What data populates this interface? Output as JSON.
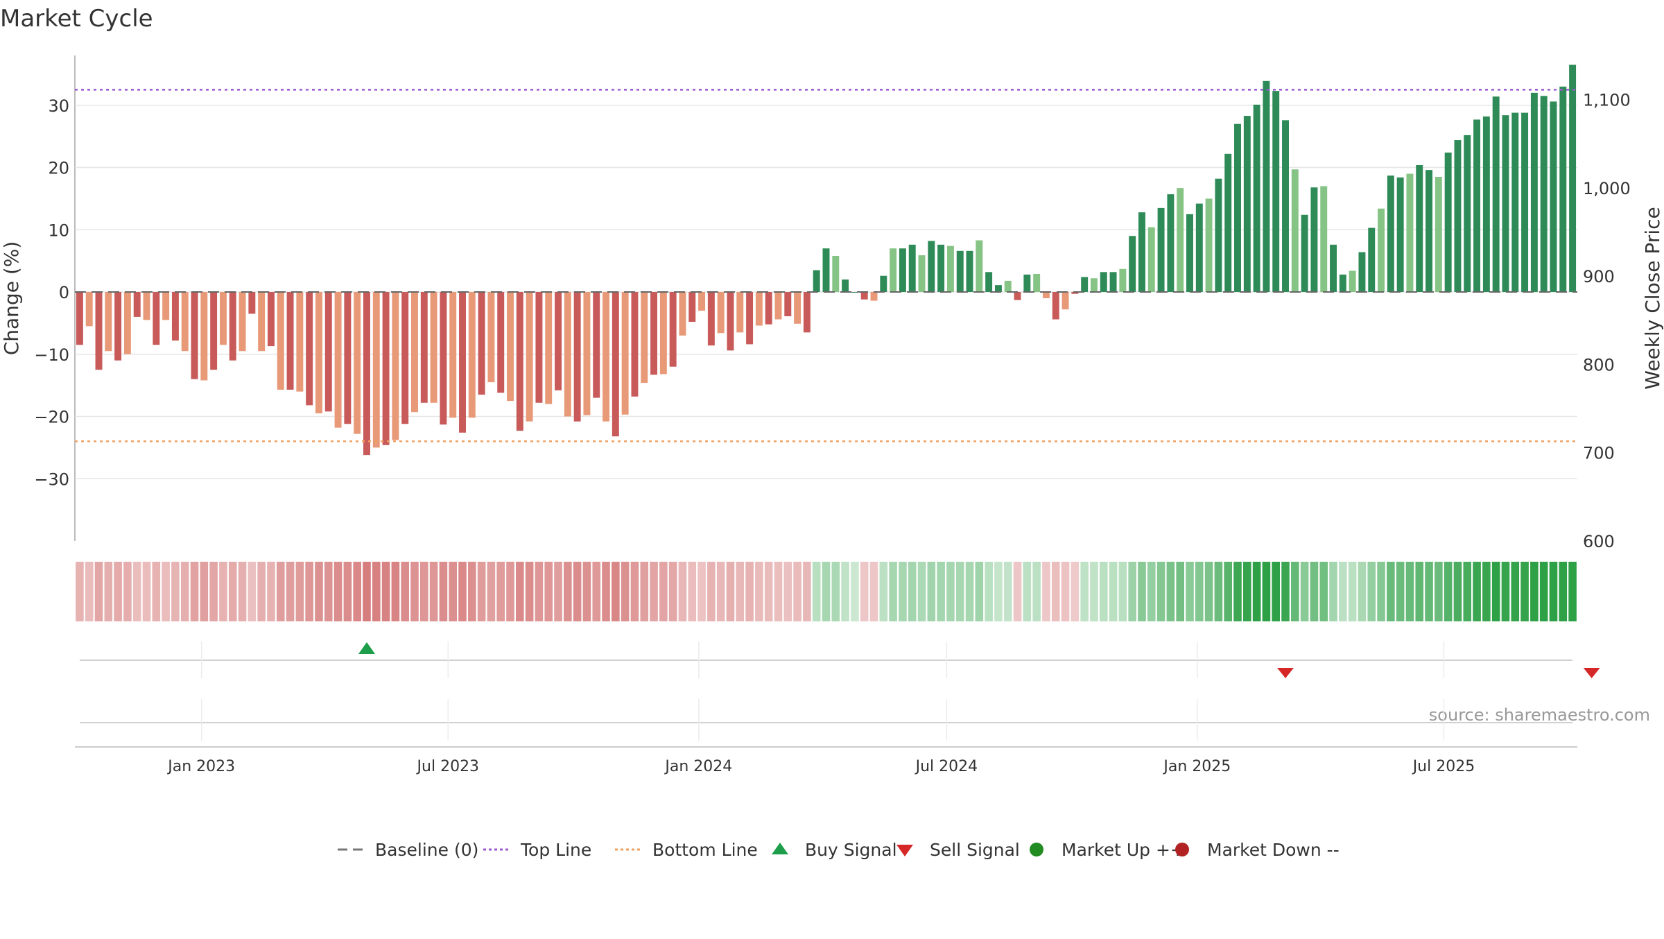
{
  "chart_data": {
    "type": "bar",
    "title": "Market Cycle",
    "ylabel_left": "Change (%)",
    "ylabel_right": "Weekly Close Price",
    "left_axis": {
      "ylim": [
        -40,
        38
      ],
      "ticks": [
        30,
        20,
        10,
        0,
        -10,
        -20,
        -30
      ],
      "tick_labels": [
        "30",
        "20",
        "10",
        "0",
        "−10",
        "−20",
        "−30"
      ]
    },
    "right_axis": {
      "ylim": [
        600,
        1150
      ],
      "ticks": [
        1100,
        1000,
        900,
        800,
        700,
        600
      ],
      "tick_labels": [
        "1,100",
        "1,000",
        "900",
        "800",
        "700",
        "600"
      ]
    },
    "x_axis": {
      "range": [
        "2022-09-30",
        "2025-10-07"
      ],
      "ticks": [
        "2023-01-01",
        "2023-07-01",
        "2024-01-01",
        "2024-07-01",
        "2025-01-01",
        "2025-07-01"
      ],
      "tick_labels": [
        "Jan 2023",
        "Jul 2023",
        "Jan 2024",
        "Jul 2024",
        "Jan 2025",
        "Jul 2025"
      ]
    },
    "grid": true,
    "legend_position": "bottom-center",
    "series": [
      {
        "name": "Change (%)",
        "values": [
          -8.5,
          -5.5,
          -12.5,
          -9.5,
          -11,
          -10,
          -4,
          -4.5,
          -8.5,
          -4.5,
          -7.8,
          -9.5,
          -14,
          -14.2,
          -12.5,
          -8.5,
          -11,
          -9.5,
          -3.5,
          -9.5,
          -8.7,
          -15.7,
          -15.7,
          -16,
          -18.2,
          -19.5,
          -19.2,
          -21.8,
          -21.2,
          -22.8,
          -26.2,
          -25,
          -24.6,
          -23.8,
          -21.2,
          -19.3,
          -17.8,
          -17.8,
          -21.3,
          -20.2,
          -22.6,
          -20.2,
          -16.5,
          -14.5,
          -16.2,
          -17.5,
          -22.3,
          -20.8,
          -17.8,
          -18,
          -15.8,
          -20,
          -20.8,
          -19.8,
          -17,
          -20.8,
          -23.2,
          -19.7,
          -16.8,
          -14.6,
          -13.3,
          -13.2,
          -12,
          -7,
          -4.8,
          -3,
          -8.6,
          -6.6,
          -9.4,
          -6.5,
          -8.4,
          -5.4,
          -5.2,
          -4.4,
          -3.9,
          -5.1,
          -6.5,
          3.5,
          7,
          5.8,
          2,
          0,
          -1.2,
          -1.4,
          2.6,
          7,
          7,
          7.6,
          5.9,
          8.2,
          7.6,
          7.4,
          6.6,
          6.6,
          8.3,
          3.2,
          1.1,
          1.8,
          -1.3,
          2.8,
          2.9,
          -1,
          -4.4,
          -2.8,
          -0.3,
          2.4,
          2.2,
          3.2,
          3.2,
          3.7,
          9,
          12.8,
          10.4,
          13.5,
          15.7,
          16.7,
          12.5,
          14.2,
          15,
          18.2,
          22.2,
          27,
          28.3,
          30.1,
          33.9,
          32.3,
          27.6,
          19.7,
          12.4,
          16.8,
          17,
          7.6,
          2.8,
          3.4,
          6.4,
          10.3,
          13.4,
          18.7,
          18.4,
          19,
          20.4,
          19.6,
          18.5,
          22.4,
          24.4,
          25.2,
          27.7,
          28.2,
          31.4,
          28.4,
          28.8,
          28.8,
          32,
          31.5,
          30.6,
          33,
          36.5
        ],
        "colors_by_value": {
          "down_strong": "#c85a5a",
          "down_weak": "#e89a78",
          "up_strong": "#2e8b57",
          "up_weak": "#86c486"
        }
      }
    ],
    "reference_lines": [
      {
        "name": "Top Line",
        "value": 32.5,
        "color": "#9b59d0",
        "style": "dotted"
      },
      {
        "name": "Bottom Line",
        "value": -24,
        "color": "#f0a060",
        "style": "dotted"
      },
      {
        "name": "Baseline (0)",
        "value": 0,
        "color": "#666666",
        "style": "dashed"
      }
    ],
    "signals": {
      "buy": [
        30
      ],
      "sell": [
        126,
        158
      ],
      "buy_color": "#1e9e4a",
      "sell_color": "#d62728"
    },
    "source_text": "source: sharemaestro.com",
    "legend": [
      {
        "label": "Baseline (0)",
        "symbol": "dash",
        "color": "#777777"
      },
      {
        "label": "Top Line",
        "symbol": "dotted",
        "color": "#9b59d0"
      },
      {
        "label": "Bottom Line",
        "symbol": "dotted",
        "color": "#f0a060"
      },
      {
        "label": "Buy Signal",
        "symbol": "triangle-up",
        "color": "#1e9e4a"
      },
      {
        "label": "Sell Signal",
        "symbol": "triangle-down",
        "color": "#d62728"
      },
      {
        "label": "Market Up ++",
        "symbol": "circle",
        "color": "#228b22"
      },
      {
        "label": "Market Down --",
        "symbol": "circle",
        "color": "#b22222"
      }
    ]
  }
}
